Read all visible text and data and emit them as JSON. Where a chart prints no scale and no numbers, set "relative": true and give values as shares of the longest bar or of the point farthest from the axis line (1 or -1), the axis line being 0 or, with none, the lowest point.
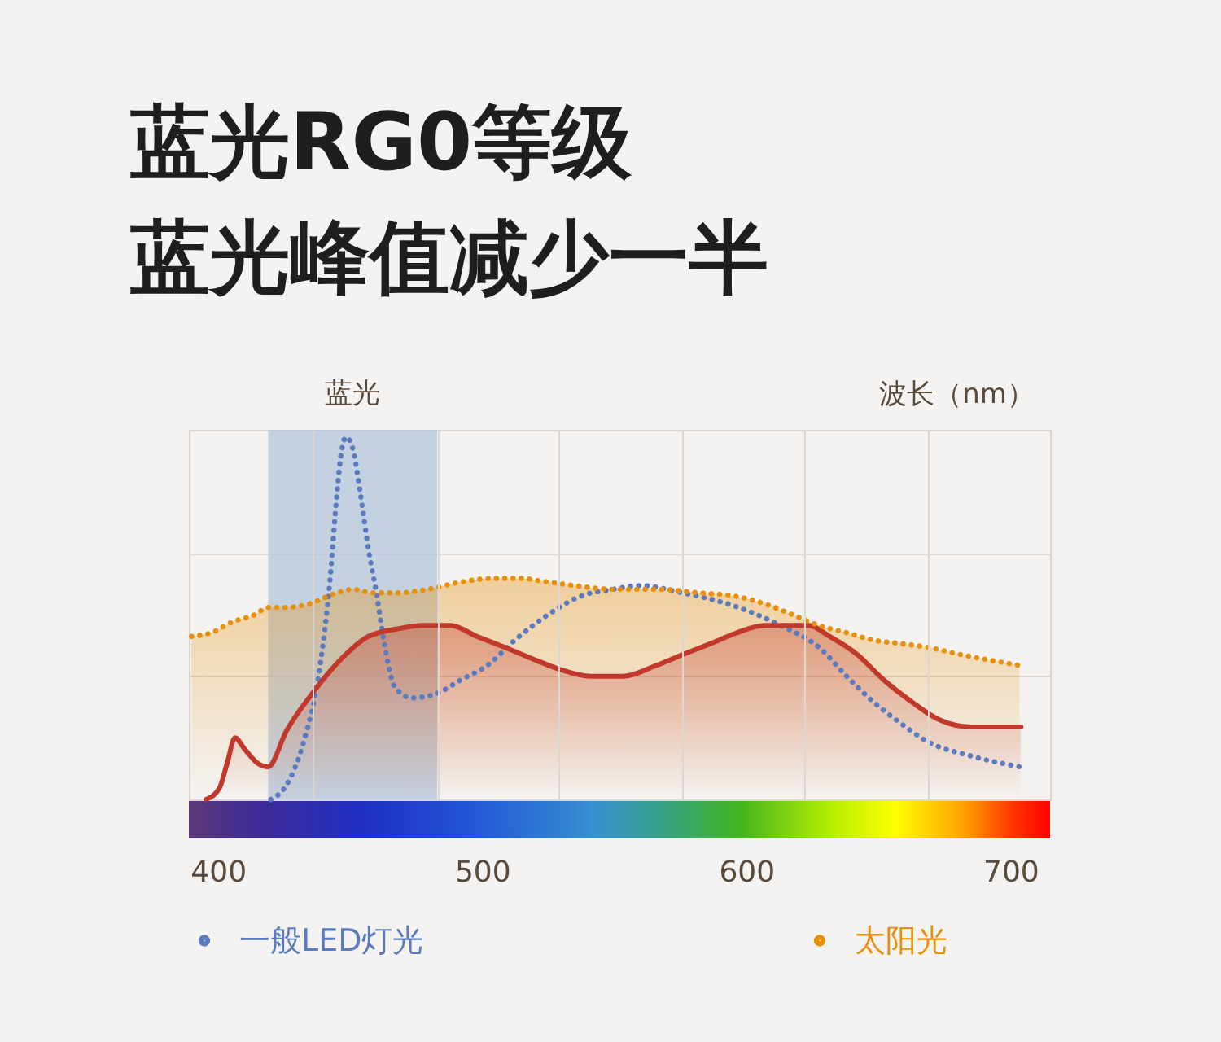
{
  "chart_data": {
    "type": "line",
    "title": "蓝光RG0等级",
    "subtitle": "蓝光峰值减少一半",
    "xlabel": "波长（nm）",
    "relative": true,
    "xlim": [
      389,
      715
    ],
    "xticks": [
      400,
      {
        "value": 436,
        "label": null
      },
      {
        "value": 483,
        "label": null
      },
      500,
      {
        "value": 529,
        "label": null
      },
      {
        "value": 576,
        "label": null
      },
      600,
      {
        "value": 622,
        "label": null
      },
      {
        "value": 669,
        "label": null
      },
      700
    ],
    "grid": true,
    "legend": "bottom",
    "bands": [
      {
        "axis": "x",
        "from": 419,
        "to": 483,
        "label": "蓝光",
        "color": "#b4c6da"
      }
    ],
    "series": [
      {
        "name": "一般LED灯光",
        "color": "#5b7bbf",
        "line_style": "dotted",
        "x": [
          420,
          426,
          432.5,
          438.5,
          442.5,
          445,
          447,
          448.5,
          451,
          454,
          457,
          460,
          463,
          467,
          473.5,
          482,
          492,
          502,
          512.5,
          525,
          537,
          549.5,
          560,
          576,
          597,
          613,
          627.5,
          638,
          648,
          658.5,
          668.5,
          685,
          703.5
        ],
        "values": [
          0,
          0.04,
          0.16,
          0.36,
          0.61,
          0.84,
          0.97,
          1,
          0.97,
          0.84,
          0.69,
          0.57,
          0.43,
          0.31,
          0.28,
          0.29,
          0.33,
          0.37,
          0.44,
          0.51,
          0.56,
          0.58,
          0.59,
          0.57,
          0.53,
          0.48,
          0.42,
          0.34,
          0.27,
          0.21,
          0.16,
          0.12,
          0.09
        ]
      },
      {
        "color": "#c0392b",
        "type": "area",
        "line_style": "solid",
        "x": [
          395.5,
          400.5,
          403.5,
          406.5,
          410,
          415,
          419,
          426,
          436.5,
          447,
          457,
          467.5,
          477.5,
          488,
          498,
          508.5,
          518.5,
          529,
          541,
          553.5,
          566,
          576,
          586.5,
          596.5,
          607,
          615,
          623.5,
          631.5,
          642,
          652,
          662.5,
          673,
          685,
          704
        ],
        "values": [
          0,
          0.03,
          0.1,
          0.17,
          0.14,
          0.1,
          0.09,
          0.19,
          0.3,
          0.39,
          0.45,
          0.47,
          0.48,
          0.48,
          0.45,
          0.42,
          0.39,
          0.36,
          0.34,
          0.34,
          0.37,
          0.4,
          0.43,
          0.46,
          0.48,
          0.48,
          0.48,
          0.45,
          0.4,
          0.33,
          0.27,
          0.22,
          0.2,
          0.2
        ]
      },
      {
        "name": "太阳光",
        "color": "#e8900c",
        "type": "area",
        "line_style": "dotted",
        "x": [
          390,
          397.5,
          405.5,
          414,
          419,
          426,
          434.5,
          445,
          451,
          459,
          467.5,
          479.5,
          492,
          504.5,
          514.5,
          525,
          535,
          549.5,
          566,
          582.5,
          596.5,
          607,
          617.5,
          627.5,
          638,
          648,
          658.5,
          668.5,
          681,
          703.5
        ],
        "values": [
          0.45,
          0.46,
          0.49,
          0.51,
          0.53,
          0.53,
          0.54,
          0.57,
          0.58,
          0.57,
          0.57,
          0.58,
          0.6,
          0.61,
          0.61,
          0.6,
          0.59,
          0.58,
          0.58,
          0.57,
          0.56,
          0.54,
          0.51,
          0.48,
          0.46,
          0.44,
          0.43,
          0.42,
          0.4,
          0.37
        ]
      }
    ]
  }
}
